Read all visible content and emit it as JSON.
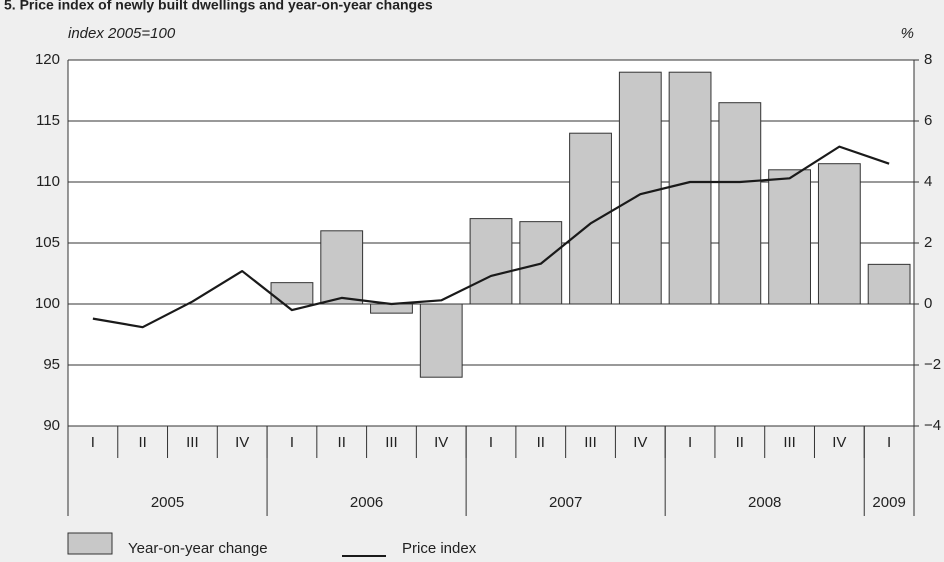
{
  "chart_data": {
    "type": "bar_line",
    "title": "5. Price index of newly built dwellings and year-on-year changes",
    "y_label": "index 2005=100",
    "y2_label": "%",
    "categories": [
      "I",
      "II",
      "III",
      "IV",
      "I",
      "II",
      "III",
      "IV",
      "I",
      "II",
      "III",
      "IV",
      "I",
      "II",
      "III",
      "IV",
      "I"
    ],
    "groups": [
      {
        "label": "2005",
        "count": 4
      },
      {
        "label": "2006",
        "count": 4
      },
      {
        "label": "2007",
        "count": 4
      },
      {
        "label": "2008",
        "count": 4
      },
      {
        "label": "2009",
        "count": 1
      }
    ],
    "series": [
      {
        "name": "Year-on-year change",
        "type": "bar",
        "axis": "y2",
        "color": "#c8c8c8",
        "values": [
          null,
          null,
          null,
          null,
          0.7,
          2.4,
          -0.3,
          -2.4,
          2.8,
          2.7,
          5.6,
          7.6,
          7.6,
          6.6,
          4.4,
          4.6,
          1.3
        ]
      },
      {
        "name": "Price index",
        "type": "line",
        "color": "#1a1a1a",
        "values": [
          98.8,
          98.1,
          100.2,
          102.7,
          99.5,
          100.5,
          100.0,
          100.3,
          102.3,
          103.3,
          106.6,
          109.0,
          110.0,
          110.0,
          110.3,
          112.9,
          111.5
        ]
      }
    ],
    "ylim": [
      90,
      120
    ],
    "yticks": [
      90,
      95,
      100,
      105,
      110,
      115,
      120
    ],
    "y2lim": [
      -4,
      8
    ],
    "y2ticks": [
      {
        "value": -4,
        "label": "−4"
      },
      {
        "value": -2,
        "label": "−2"
      },
      0,
      2,
      4,
      6,
      8
    ],
    "grid": true
  }
}
